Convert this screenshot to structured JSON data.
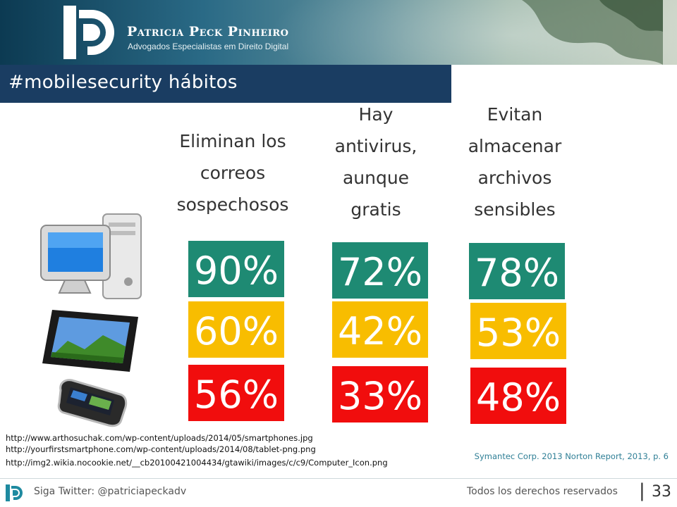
{
  "header": {
    "brand_name": "Patricia Peck Pinheiro",
    "brand_sub": "Advogados Especialistas em Direito Digital"
  },
  "title": "#mobilesecurity  hábitos",
  "columns": [
    {
      "heading": "Eliminan los correos sospechosos",
      "values": [
        "90%",
        "60%",
        "56%"
      ]
    },
    {
      "heading": "Hay antivirus, aunque gratis",
      "values": [
        "72%",
        "42%",
        "33%"
      ]
    },
    {
      "heading": "Evitan almacenar archivos sensibles",
      "values": [
        "78%",
        "53%",
        "48%"
      ]
    }
  ],
  "row_colors": [
    "#1e8a73",
    "#f8bd00",
    "#f10d0d"
  ],
  "devices": [
    "computer-icon",
    "tablet-icon",
    "smartphone-icon"
  ],
  "sources": [
    "http://www.arthosuchak.com/wp-content/uploads/2014/05/smartphones.jpg",
    "http://yourfirstsmartphone.com/wp-content/uploads/2014/08/tablet-png.png",
    "http://img2.wikia.nocookie.net/__cb20100421004434/gtawiki/images/c/c9/Computer_Icon.png"
  ],
  "citation": "Symantec Corp. 2013 Norton Report, 2013, p. 6",
  "footer": {
    "twitter": "Siga Twitter: @patriciapeckadv",
    "rights": "Todos los derechos reservados",
    "separator": "|",
    "page_number": "33"
  }
}
